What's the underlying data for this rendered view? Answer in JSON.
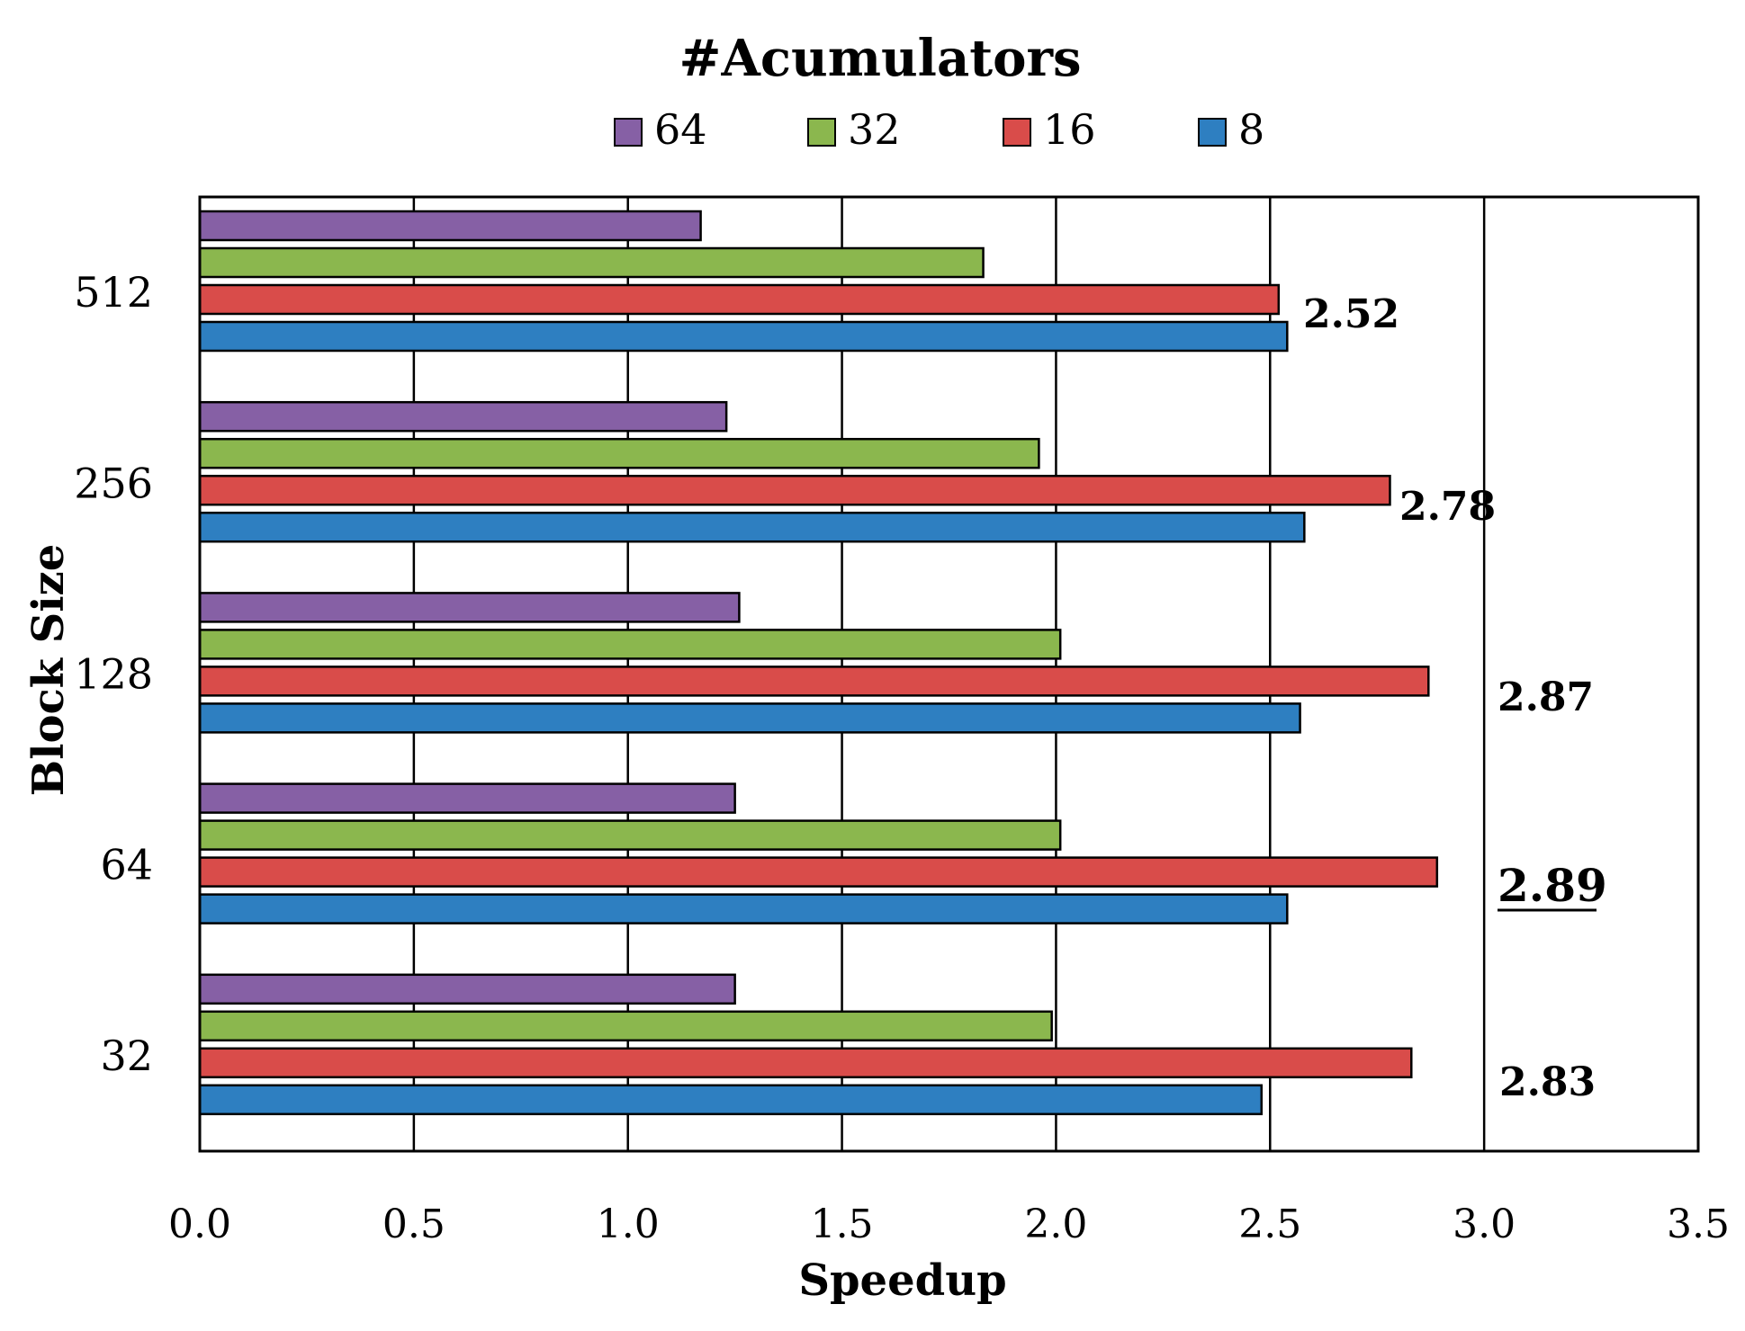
{
  "chart_data": {
    "type": "bar",
    "orientation": "horizontal",
    "title": "#Acumulators",
    "xlabel": "Speedup",
    "ylabel": "Block Size",
    "xlim": [
      0,
      3.5
    ],
    "xticks": [
      "0.0",
      "0.5",
      "1.0",
      "1.5",
      "2.0",
      "2.5",
      "3.0",
      "3.5"
    ],
    "categories": [
      "512",
      "256",
      "128",
      "64",
      "32"
    ],
    "legend_position": "top-center",
    "grid": true,
    "series": [
      {
        "name": "64",
        "color": "#8660a5",
        "values": [
          1.17,
          1.23,
          1.26,
          1.25,
          1.25
        ]
      },
      {
        "name": "32",
        "color": "#8bb74e",
        "values": [
          1.83,
          1.96,
          2.01,
          2.01,
          1.99
        ]
      },
      {
        "name": "16",
        "color": "#d94c4a",
        "values": [
          2.52,
          2.78,
          2.87,
          2.89,
          2.83
        ]
      },
      {
        "name": "8",
        "color": "#2e7fc1",
        "values": [
          2.54,
          2.58,
          2.57,
          2.54,
          2.48
        ]
      }
    ],
    "annotations": [
      {
        "category": "512",
        "text": "2.52",
        "underline": false
      },
      {
        "category": "256",
        "text": "2.78",
        "underline": false
      },
      {
        "category": "128",
        "text": "2.87",
        "underline": false
      },
      {
        "category": "64",
        "text": "2.89",
        "underline": true
      },
      {
        "category": "32",
        "text": "2.83",
        "underline": false
      }
    ]
  }
}
